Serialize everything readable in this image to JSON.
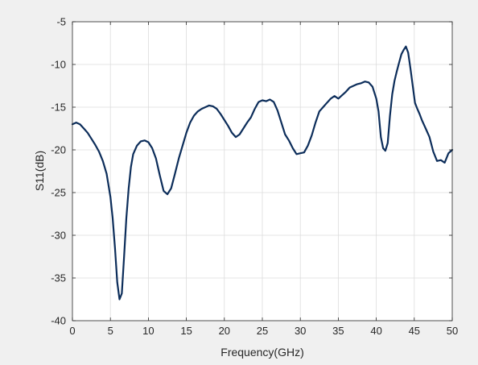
{
  "chart_data": {
    "type": "line",
    "title": "",
    "xlabel": "Frequency(GHz)",
    "ylabel": "S11(dB)",
    "xlim": [
      0,
      50
    ],
    "ylim": [
      -40,
      -5
    ],
    "xticks": [
      0,
      5,
      10,
      15,
      20,
      25,
      30,
      35,
      40,
      45,
      50
    ],
    "yticks": [
      -40,
      -35,
      -30,
      -25,
      -20,
      -15,
      -10,
      -5
    ],
    "xtick_labels": [
      "0",
      "5",
      "10",
      "15",
      "20",
      "25",
      "30",
      "35",
      "40",
      "45",
      "50"
    ],
    "ytick_labels": [
      "-40",
      "-35",
      "-30",
      "-25",
      "-20",
      "-15",
      "-10",
      "-5"
    ],
    "grid": true,
    "legend": "none",
    "line_color": "#0c2d5a",
    "series": [
      {
        "x": [
          0,
          0.5,
          1,
          1.5,
          2,
          2.5,
          3,
          3.5,
          4,
          4.5,
          5,
          5.3,
          5.6,
          5.9,
          6.2,
          6.5,
          6.8,
          7.1,
          7.4,
          7.7,
          8,
          8.5,
          9,
          9.5,
          10,
          10.5,
          11,
          11.5,
          12,
          12.5,
          13,
          13.5,
          14,
          14.5,
          15,
          15.5,
          16,
          16.5,
          17,
          17.5,
          18,
          18.5,
          19,
          19.5,
          20,
          20.5,
          21,
          21.5,
          22,
          22.5,
          23,
          23.5,
          24,
          24.5,
          25,
          25.5,
          26,
          26.5,
          27,
          27.5,
          28,
          28.5,
          29,
          29.5,
          30,
          30.5,
          31,
          31.5,
          32,
          32.5,
          33,
          33.5,
          34,
          34.5,
          35,
          35.5,
          36,
          36.5,
          37,
          37.5,
          38,
          38.5,
          39,
          39.5,
          40,
          40.3,
          40.6,
          40.9,
          41.2,
          41.5,
          41.8,
          42.1,
          42.4,
          42.7,
          43,
          43.3,
          43.6,
          43.9,
          44.2,
          44.5,
          44.8,
          45.1,
          45.4,
          45.7,
          46,
          46.5,
          47,
          47.5,
          48,
          48.5,
          49,
          49.5,
          50
        ],
        "y": [
          -17,
          -16.8,
          -17,
          -17.5,
          -18,
          -18.7,
          -19.4,
          -20.2,
          -21.3,
          -22.8,
          -25.5,
          -28,
          -31.5,
          -35.5,
          -37.5,
          -36.8,
          -32.5,
          -28,
          -24.5,
          -22,
          -20.5,
          -19.5,
          -19,
          -18.9,
          -19.1,
          -19.8,
          -21,
          -23,
          -24.8,
          -25.2,
          -24.5,
          -22.8,
          -21,
          -19.5,
          -18,
          -16.8,
          -16,
          -15.5,
          -15.2,
          -15,
          -14.8,
          -14.9,
          -15.2,
          -15.8,
          -16.5,
          -17.2,
          -18,
          -18.5,
          -18.2,
          -17.5,
          -16.8,
          -16.2,
          -15.2,
          -14.4,
          -14.2,
          -14.3,
          -14.1,
          -14.4,
          -15.4,
          -16.8,
          -18.2,
          -18.9,
          -19.8,
          -20.5,
          -20.4,
          -20.3,
          -19.5,
          -18.3,
          -16.8,
          -15.5,
          -15,
          -14.5,
          -14,
          -13.7,
          -14,
          -13.6,
          -13.2,
          -12.7,
          -12.5,
          -12.3,
          -12.2,
          -12,
          -12.1,
          -12.6,
          -14,
          -15.5,
          -18.5,
          -19.8,
          -20.1,
          -19.2,
          -16,
          -13.5,
          -11.9,
          -10.8,
          -9.8,
          -8.8,
          -8.3,
          -7.9,
          -8.6,
          -10.5,
          -12.5,
          -14.5,
          -15.2,
          -15.8,
          -16.5,
          -17.5,
          -18.5,
          -20.2,
          -21.3,
          -21.2,
          -21.5,
          -20.4,
          -20
        ]
      }
    ]
  }
}
